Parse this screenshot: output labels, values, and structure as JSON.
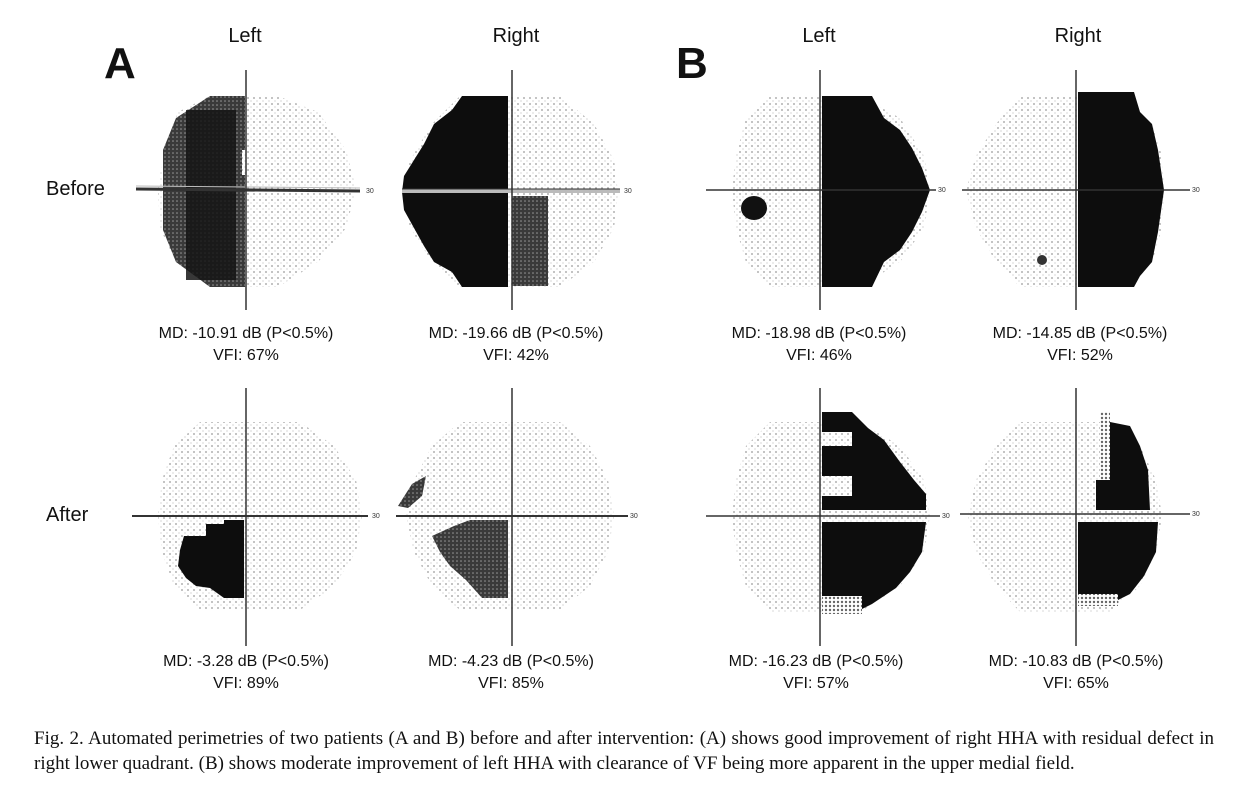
{
  "panel_a": {
    "letter": "A",
    "col_left": "Left",
    "col_right": "Right",
    "row_before": "Before",
    "row_after": "After",
    "before_left": {
      "md": "MD: -10.91 dB (P<0.5%)",
      "vfi": "VFI: 67%"
    },
    "before_right": {
      "md": "MD: -19.66 dB (P<0.5%)",
      "vfi": "VFI: 42%"
    },
    "after_left": {
      "md": "MD: -3.28 dB (P<0.5%)",
      "vfi": "VFI: 89%"
    },
    "after_right": {
      "md": "MD: -4.23 dB (P<0.5%)",
      "vfi": "VFI: 85%"
    }
  },
  "panel_b": {
    "letter": "B",
    "col_left": "Left",
    "col_right": "Right",
    "before_left": {
      "md": "MD: -18.98 dB (P<0.5%)",
      "vfi": "VFI: 46%"
    },
    "before_right": {
      "md": "MD: -14.85 dB (P<0.5%)",
      "vfi": "VFI: 52%"
    },
    "after_left": {
      "md": "MD: -16.23 dB (P<0.5%)",
      "vfi": "VFI: 57%"
    },
    "after_right": {
      "md": "MD: -10.83 dB (P<0.5%)",
      "vfi": "VFI: 65%"
    }
  },
  "axis_tick_label": "30",
  "caption": "Fig. 2. Automated perimetries of two patients (A and B) before and after intervention: (A) shows good improvement of right HHA with residual defect in right lower quadrant. (B) shows moderate improvement of left HHA with clearance of VF being more apparent in the upper medial field."
}
